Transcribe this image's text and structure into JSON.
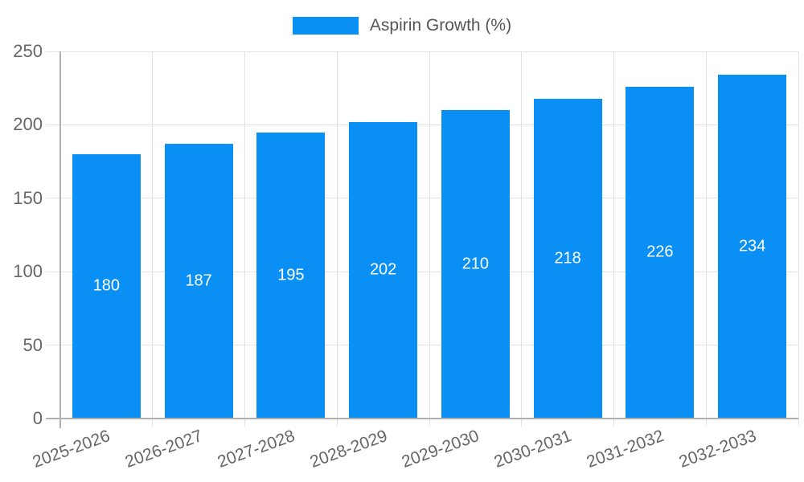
{
  "legend": {
    "label": "Aspirin Growth (%)"
  },
  "chart_data": {
    "type": "bar",
    "title": "",
    "xlabel": "",
    "ylabel": "",
    "categories": [
      "2025-2026",
      "2026-2027",
      "2027-2028",
      "2028-2029",
      "2029-2030",
      "2030-2031",
      "2031-2032",
      "2032-2033"
    ],
    "series": [
      {
        "name": "Aspirin Growth (%)",
        "color": "#0a90f5",
        "values": [
          180,
          187,
          195,
          202,
          210,
          218,
          226,
          234
        ]
      }
    ],
    "value_labels": "inside-center",
    "value_label_color": "#ffffff",
    "ylim": [
      0,
      250
    ],
    "yticks": [
      0,
      50,
      100,
      150,
      200,
      250
    ],
    "grid": true,
    "legend_position": "top-center",
    "x_label_rotation_deg": -20,
    "axis_color": "#b0b0b0",
    "grid_color": "#e2e2e2",
    "tick_label_color": "#666666"
  }
}
